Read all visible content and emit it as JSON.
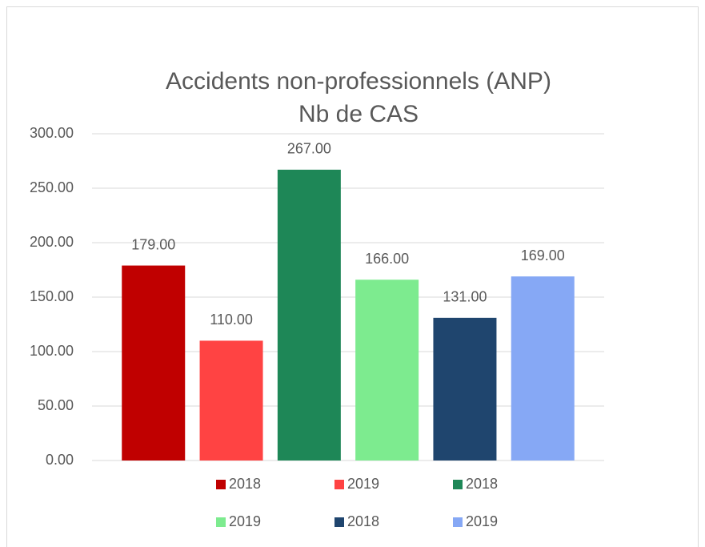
{
  "chart_data": {
    "type": "bar",
    "title": "Accidents non-professionnels (ANP)",
    "subtitle": "Nb de CAS",
    "categories": [
      null
    ],
    "series": [
      {
        "name": "2018",
        "color": "#c00000",
        "values": [
          179
        ],
        "value_labels": [
          "179.00"
        ]
      },
      {
        "name": "2019",
        "color": "#ff4343",
        "values": [
          110
        ],
        "value_labels": [
          "110.00"
        ]
      },
      {
        "name": "2018",
        "color": "#1e8757",
        "values": [
          267
        ],
        "value_labels": [
          "267.00"
        ]
      },
      {
        "name": "2019",
        "color": "#7deb8f",
        "values": [
          166
        ],
        "value_labels": [
          "166.00"
        ]
      },
      {
        "name": "2018",
        "color": "#1f456e",
        "values": [
          131
        ],
        "value_labels": [
          "131.00"
        ]
      },
      {
        "name": "2019",
        "color": "#86a8f5",
        "values": [
          169
        ],
        "value_labels": [
          "169.00"
        ]
      }
    ],
    "ylim": [
      0,
      300
    ],
    "yticks": [
      {
        "value": 0,
        "label": "0.00"
      },
      {
        "value": 50,
        "label": "50.00"
      },
      {
        "value": 100,
        "label": "100.00"
      },
      {
        "value": 150,
        "label": "150.00"
      },
      {
        "value": 200,
        "label": "200.00"
      },
      {
        "value": 250,
        "label": "250.00"
      },
      {
        "value": 300,
        "label": "300.00"
      }
    ],
    "grid": true,
    "legend": "bottom"
  }
}
